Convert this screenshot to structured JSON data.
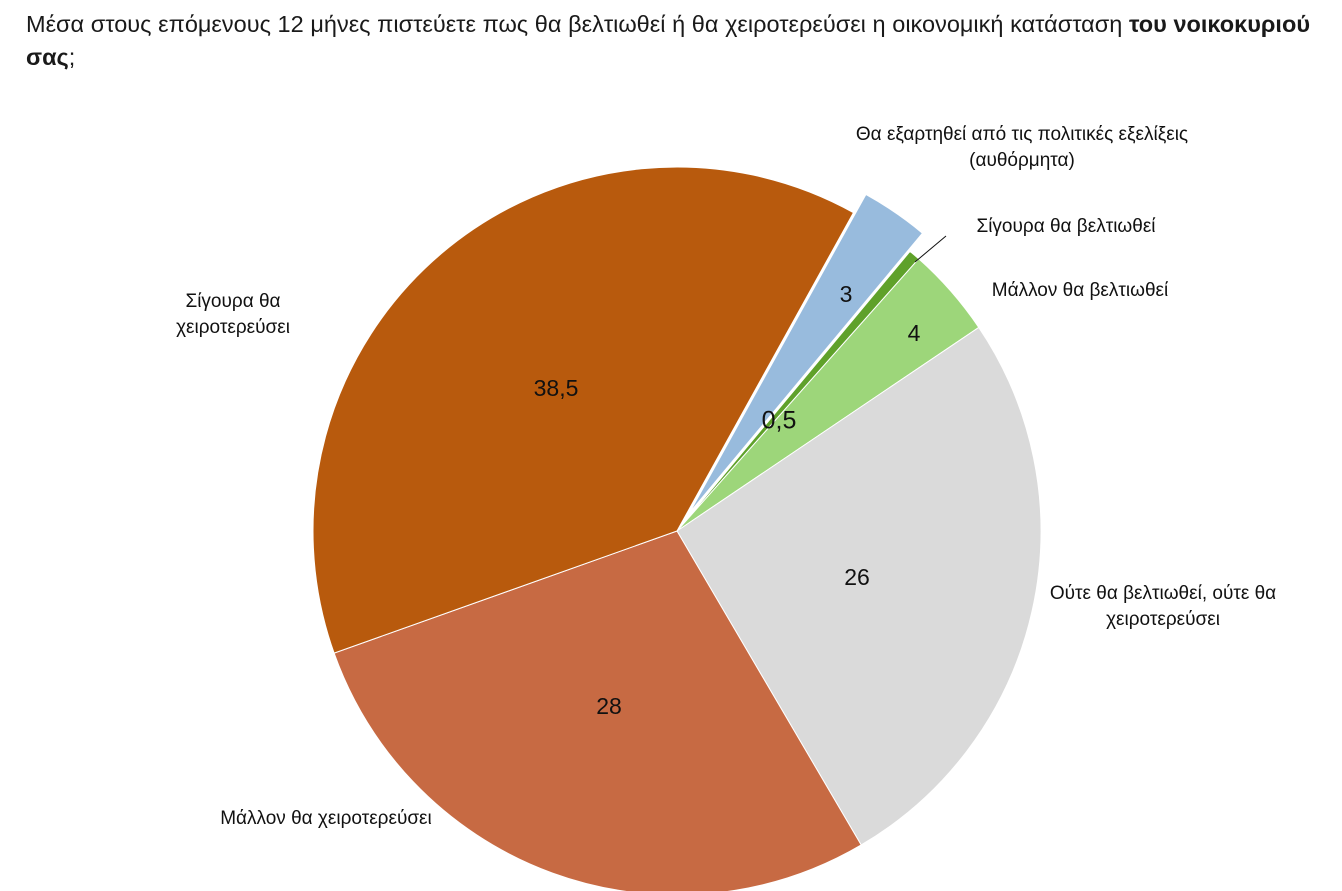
{
  "question": {
    "part1": "Μέσα στους επόμενους 12 μήνες πιστεύετε πως θα βελτιωθεί ή θα χειροτερεύσει η οικονομική κατάσταση ",
    "bold": "του νοικοκυριού σας",
    "end": ";"
  },
  "chart_data": {
    "type": "pie",
    "title": "Μέσα στους επόμενους 12 μήνες πιστεύετε πως θα βελτιωθεί ή θα χειροτερεύσει η οικονομική κατάσταση του νοικοκυριού σας;",
    "slices": [
      {
        "id": "spontaneous",
        "label": [
          "Θα εξαρτηθεί από τις πολιτικές εξελίξεις",
          "(αυθόρμητα)"
        ],
        "value": 3,
        "value_label": "3",
        "color": "#98BBDD",
        "exploded": true
      },
      {
        "id": "surely-improve",
        "label": [
          "Σίγουρα θα βελτιωθεί"
        ],
        "value": 0.5,
        "value_label": "0,5",
        "color": "#5FA12A"
      },
      {
        "id": "rather-improve",
        "label": [
          "Μάλλον θα βελτιωθεί"
        ],
        "value": 4,
        "value_label": "4",
        "color": "#9DD67A"
      },
      {
        "id": "neither",
        "label": [
          "Ούτε θα βελτιωθεί, ούτε θα",
          "χειροτερεύσει"
        ],
        "value": 26,
        "value_label": "26",
        "color": "#DADADA"
      },
      {
        "id": "rather-worse",
        "label": [
          "Μάλλον θα χειροτερεύσει"
        ],
        "value": 28,
        "value_label": "28",
        "color": "#C76A43"
      },
      {
        "id": "surely-worse",
        "label": [
          "Σίγουρα θα",
          "χειροτερεύσει"
        ],
        "value": 38.5,
        "value_label": "38,5",
        "color": "#B85A0D"
      }
    ]
  }
}
